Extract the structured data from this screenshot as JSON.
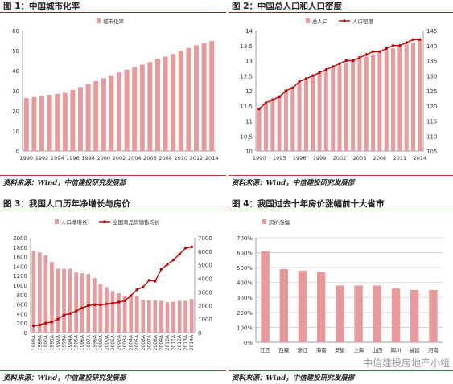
{
  "panels": [
    {
      "title": "图 1：中国城市化率",
      "source": "资料来源：Wind，中信建投研究发展部"
    },
    {
      "title": "图 2：中国总人口和人口密度",
      "source": "资料来源：Wind，中信建投研究发展部"
    },
    {
      "title": "图 3：我国人口历年净增长与房价",
      "source": "资料来源：Wind，中信建投研究发展部"
    },
    {
      "title": "图 4：我国过去十年房价涨幅前十大省市",
      "source": "资料来源：Wind，中信建投研究发展部"
    }
  ],
  "watermark": "中信建投房地产小组",
  "chart_data": [
    {
      "type": "bar",
      "x": [
        1990,
        1991,
        1992,
        1993,
        1994,
        1995,
        1996,
        1997,
        1998,
        1999,
        2000,
        2001,
        2002,
        2003,
        2004,
        2005,
        2006,
        2007,
        2008,
        2009,
        2010,
        2011,
        2012,
        2013,
        2014
      ],
      "xticks": [
        "1990",
        "1992",
        "1994",
        "1996",
        "1998",
        "2000",
        "2002",
        "2004",
        "2006",
        "2008",
        "2010",
        "2012",
        "2014"
      ],
      "series": [
        {
          "name": "城市化率",
          "values": [
            26.4,
            26.9,
            27.5,
            28.0,
            28.5,
            29.0,
            30.5,
            31.9,
            33.4,
            34.8,
            36.2,
            37.7,
            39.1,
            40.5,
            41.8,
            43.0,
            44.3,
            45.9,
            47.0,
            48.3,
            50.0,
            51.3,
            52.6,
            53.7,
            54.8
          ],
          "color": "#e8999b"
        }
      ],
      "ylim": [
        0,
        60
      ],
      "yticks": [
        "0",
        "10",
        "20",
        "30",
        "40",
        "50",
        "60"
      ],
      "legend": "top"
    },
    {
      "type": "bar",
      "x": [
        1990,
        1991,
        1992,
        1993,
        1994,
        1995,
        1996,
        1997,
        1998,
        1999,
        2000,
        2001,
        2002,
        2003,
        2004,
        2005,
        2006,
        2007,
        2008,
        2009,
        2010,
        2011,
        2012,
        2013,
        2014
      ],
      "xticks": [
        "1990",
        "1993",
        "1996",
        "1999",
        "2002",
        "2005",
        "2008",
        "2011",
        "2014"
      ],
      "series": [
        {
          "name": "总人口",
          "type": "bar",
          "axis": "left",
          "values": [
            11.43,
            11.58,
            11.72,
            11.85,
            11.99,
            12.11,
            12.24,
            12.36,
            12.48,
            12.58,
            12.67,
            12.76,
            12.85,
            12.92,
            13.0,
            13.08,
            13.14,
            13.21,
            13.28,
            13.35,
            13.41,
            13.47,
            13.54,
            13.61,
            13.68
          ],
          "color": "#e8999b"
        },
        {
          "name": "人口密度",
          "type": "line",
          "axis": "right",
          "values": [
            119,
            121,
            122,
            123,
            125,
            126,
            128,
            129,
            130,
            131,
            132,
            133,
            134,
            135,
            135,
            136,
            137,
            138,
            138,
            139,
            140,
            140,
            141,
            142,
            142
          ],
          "color": "#c00000"
        }
      ],
      "ylim": [
        10,
        14
      ],
      "yticks": [
        "10",
        "10.5",
        "11",
        "11.5",
        "12",
        "12.5",
        "13",
        "13.5",
        "14"
      ],
      "y2lim": [
        105,
        145
      ],
      "y2ticks": [
        "105",
        "110",
        "115",
        "120",
        "125",
        "130",
        "135",
        "140",
        "145"
      ],
      "legend": "top"
    },
    {
      "type": "bar",
      "x": [
        "1988A",
        "1989A",
        "1990A",
        "1991A",
        "1992A",
        "1993A",
        "1994A",
        "1995A",
        "1996A",
        "1997A",
        "1998A",
        "1999A",
        "2000A",
        "2001A",
        "2002A",
        "2003A",
        "2004A",
        "2005A",
        "2006A",
        "2007A",
        "2008A",
        "2009A",
        "2010A",
        "2011A",
        "2012A",
        "2013A",
        "2014A"
      ],
      "series": [
        {
          "name": "人口净增长",
          "type": "bar",
          "axis": "left",
          "values": [
            1730,
            1690,
            1630,
            1490,
            1350,
            1346,
            1345,
            1270,
            1250,
            1235,
            1150,
            1020,
            960,
            880,
            830,
            780,
            760,
            770,
            690,
            680,
            680,
            670,
            640,
            650,
            670,
            670,
            710
          ],
          "color": "#e8999b"
        },
        {
          "name": "全国商品房销售均价",
          "type": "line",
          "axis": "right",
          "values": [
            500,
            560,
            700,
            790,
            990,
            1290,
            1410,
            1590,
            1810,
            1990,
            2060,
            2050,
            2110,
            2170,
            2250,
            2360,
            2720,
            3170,
            3370,
            3860,
            3800,
            4680,
            5030,
            5360,
            5790,
            6240,
            6320
          ],
          "color": "#c00000"
        }
      ],
      "ylim": [
        0,
        2000
      ],
      "yticks": [
        "0",
        "200",
        "400",
        "600",
        "800",
        "1000",
        "1200",
        "1400",
        "1600",
        "1800",
        "2000"
      ],
      "y2lim": [
        0,
        7000
      ],
      "y2ticks": [
        "0",
        "1000",
        "2000",
        "3000",
        "4000",
        "5000",
        "6000",
        "7000"
      ],
      "legend": "top"
    },
    {
      "type": "bar",
      "categories": [
        "江西",
        "西藏",
        "浙江",
        "海南",
        "安徽",
        "上海",
        "山西",
        "四川",
        "福建",
        "河南"
      ],
      "series": [
        {
          "name": "房价涨幅",
          "values": [
            6.1,
            4.9,
            4.8,
            4.7,
            3.8,
            3.8,
            3.8,
            3.6,
            3.5,
            3.5
          ],
          "color": "#e8999b"
        }
      ],
      "ylim": [
        0,
        7
      ],
      "yticks": [
        "0%",
        "100%",
        "200%",
        "300%",
        "400%",
        "500%",
        "600%",
        "700%"
      ],
      "legend": "top-left"
    }
  ]
}
